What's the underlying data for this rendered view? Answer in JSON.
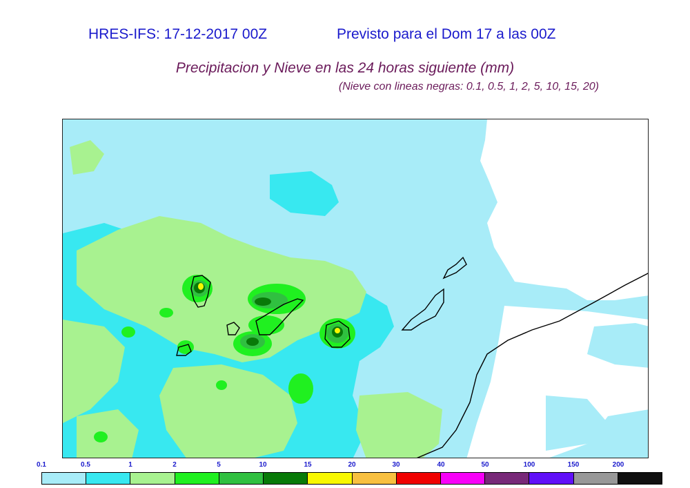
{
  "header": {
    "run": "HRES-IFS: 17-12-2017 00Z",
    "valid": "Previsto para el  Dom 17 a las 00Z",
    "title": "Precipitacion y Nieve en las 24 horas siguiente (mm)",
    "subtitle": "(Nieve con lineas negras: 0.1, 0.5, 1, 2, 5, 10, 15, 20)"
  },
  "legend": {
    "thresholds": [
      "0.1",
      "0.5",
      "1",
      "2",
      "5",
      "10",
      "15",
      "20",
      "30",
      "40",
      "50",
      "100",
      "150",
      "200"
    ],
    "colors": [
      "#a8ecf8",
      "#38e8f0",
      "#a8f290",
      "#20f020",
      "#30c040",
      "#087a08",
      "#f8f800",
      "#f8c040",
      "#f00000",
      "#f800f8",
      "#782878",
      "#6010f8",
      "#989898",
      "#101010"
    ]
  }
}
